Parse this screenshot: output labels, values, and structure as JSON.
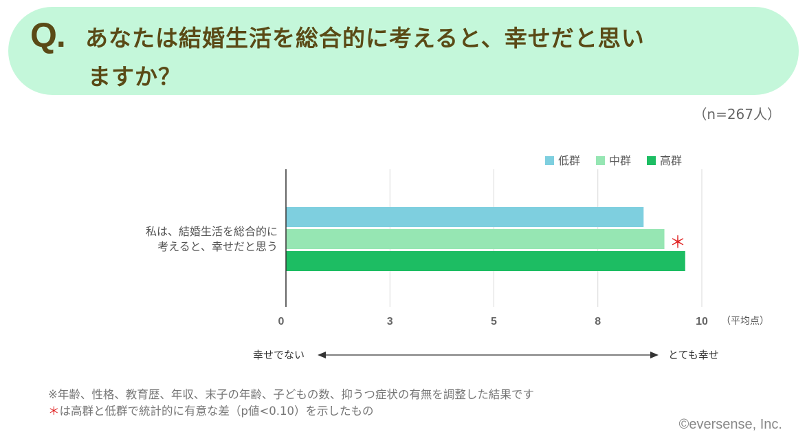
{
  "question": {
    "mark": "Q.",
    "line1": "あなたは結婚生活を総合的に考えると、幸せだと思い",
    "line2": "ますか？"
  },
  "sample_size": "（n=267人）",
  "chart_data": {
    "type": "bar",
    "orientation": "horizontal",
    "categories": [
      "私は、結婚生活を総合的に考えると、幸せだと思う"
    ],
    "category_lines": [
      "私は、結婚生活を総合的に",
      "考えると、幸せだと思う"
    ],
    "series": [
      {
        "name": "低群",
        "values": [
          8.6
        ],
        "color": "#7ecfdf"
      },
      {
        "name": "中群",
        "values": [
          9.1
        ],
        "color": "#96e6b3"
      },
      {
        "name": "高群",
        "values": [
          9.6
        ],
        "color": "#1dbd63"
      }
    ],
    "xlim": [
      0,
      10
    ],
    "x_axis_tick_labels": [
      "0",
      "3",
      "5",
      "8",
      "10"
    ],
    "x_unit": "（平均点）",
    "grid": true,
    "legend_position": "top-right",
    "significance_mark": "＊",
    "scale_low_label": "幸せでない",
    "scale_high_label": "とても幸せ"
  },
  "footnotes": {
    "note1": "※年齢、性格、教育歴、年収、末子の年齢、子どもの数、抑うつ症状の有無を調整した結果です",
    "note2_mark": "＊",
    "note2_text": "は高群と低群で統計的に有意な差（p値<0.10）を示したもの"
  },
  "copyright": "©eversense, Inc.",
  "colors": {
    "banner": "#c4f7da",
    "question_text": "#5a4a16",
    "significance": "#e02020",
    "grid": "#d9d9d9",
    "axis": "#333333"
  }
}
